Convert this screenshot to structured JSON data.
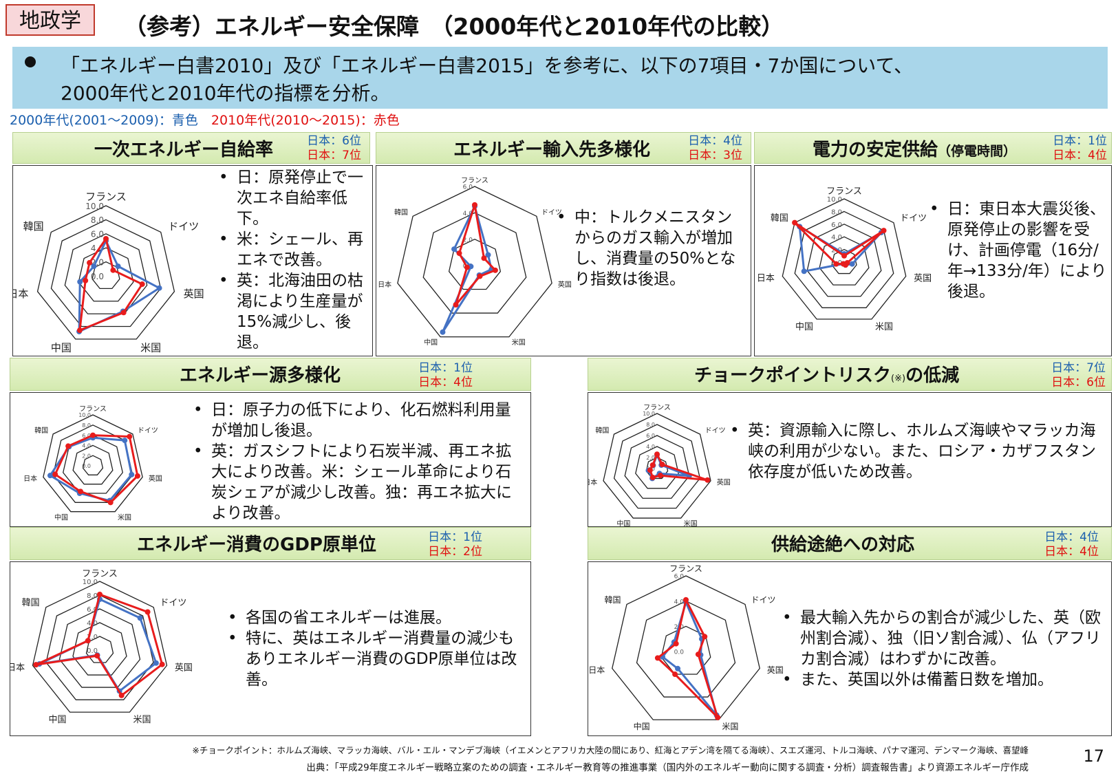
{
  "tag": "地政学",
  "title": "（参考）エネルギー安全保障　（2000年代と2010年代の比較）",
  "intro": {
    "line1": "「エネルギー白書2010」及び「エネルギー白書2015」を参考に、以下の7項目・7か国について、",
    "line2": "2000年代と2010年代の指標を分析。"
  },
  "legend": {
    "blue": "2000年代(2001～2009)：青色",
    "red": "2010年代(2010～2015)：赤色"
  },
  "colors": {
    "blue": "#4472c4",
    "red": "#e81c1c",
    "header_bg": "#dcefc0",
    "intro_bg": "#a9d6ea"
  },
  "axes_labels": [
    "フランス",
    "ドイツ",
    "英国",
    "米国",
    "中国",
    "日本",
    "韓国"
  ],
  "panels": [
    {
      "title": "一次エネルギー自給率",
      "rank_blue": "日本：6位",
      "rank_red": "日本：7位",
      "notes": [
        "日：原発停止で一次エネ自給率低下。",
        "米：シェール、再エネで改善。",
        "英：北海油田の枯渇により生産量が15%減少し、後退。"
      ],
      "chart_data": {
        "type": "radar",
        "ticks": [
          "10.0",
          "8.0",
          "6.0",
          "4.0",
          "2.0",
          "0.0"
        ],
        "range": [
          0,
          10
        ],
        "categories": [
          "フランス",
          "ドイツ",
          "英国",
          "米国",
          "中国",
          "日本",
          "韓国"
        ],
        "series": [
          {
            "values": [
              5.0,
              2.2,
              7.8,
              5.6,
              8.8,
              3.8,
              2.2
            ]
          },
          {
            "values": [
              5.3,
              1.3,
              5.3,
              5.8,
              8.6,
              3.0,
              3.0
            ]
          }
        ]
      }
    },
    {
      "title": "エネルギー輸入先多様化",
      "rank_blue": "日本：4位",
      "rank_red": "日本：3位",
      "notes": [
        "中：トルクメニスタンからのガス輸入が増加し、消費量の50%となり指数は後退。"
      ],
      "chart_data": {
        "type": "radar",
        "ticks": [
          "6.0",
          "4.0",
          "2.0",
          "0.0"
        ],
        "range": [
          0,
          6
        ],
        "categories": [
          "フランス",
          "ドイツ",
          "英国",
          "米国",
          "中国",
          "日本",
          "韓国"
        ],
        "series": [
          {
            "values": [
              4.5,
              1.3,
              1.3,
              0.8,
              5.6,
              0.3,
              2.0
            ]
          },
          {
            "values": [
              4.6,
              0.9,
              1.6,
              0.9,
              3.3,
              0.6,
              1.5
            ]
          }
        ]
      }
    },
    {
      "title": "電力の安定供給",
      "title_small": "（停電時間）",
      "rank_blue": "日本：1位",
      "rank_red": "日本：4位",
      "notes": [
        "日：東日本大震災後、原発停止の影響を受け、計画停電（16分/年→133分/年）により後退。"
      ],
      "chart_data": {
        "type": "radar",
        "ticks": [
          "10.0",
          "8.0",
          "6.0",
          "4.0",
          "2.0",
          "0.0"
        ],
        "range": [
          0,
          10
        ],
        "categories": [
          "フランス",
          "ドイツ",
          "英国",
          "米国",
          "中国",
          "日本",
          "韓国"
        ],
        "series": [
          {
            "values": [
              1.3,
              7.5,
              1.3,
              0.5,
              0.3,
              6.5,
              9.0
            ]
          },
          {
            "values": [
              1.0,
              8.0,
              0.5,
              0.5,
              0.3,
              1.3,
              10.0
            ]
          }
        ]
      }
    },
    {
      "title": "エネルギー源多様化",
      "rank_blue": "日本：1位",
      "rank_red": "日本：4位",
      "notes": [
        "日：原子力の低下により、化石燃料利用量が増加し後退。",
        "英：ガスシフトにより石炭半減、再エネ拡大により改善。米：シェール革命により石炭シェアが減少し改善。独：再エネ拡大により改善。"
      ],
      "chart_data": {
        "type": "radar",
        "ticks": [
          "10.0",
          "8.0",
          "6.0",
          "4.0",
          "2.0",
          "0.0"
        ],
        "range": [
          0,
          10
        ],
        "categories": [
          "フランス",
          "ドイツ",
          "英国",
          "米国",
          "中国",
          "日本",
          "韓国"
        ],
        "series": [
          {
            "values": [
              5.5,
              8.0,
              7.8,
              7.6,
              6.0,
              8.6,
              6.0
            ]
          },
          {
            "values": [
              6.0,
              9.2,
              9.0,
              8.0,
              5.6,
              7.6,
              6.2
            ]
          }
        ]
      }
    },
    {
      "title": "チョークポイントリスク",
      "title_mark": "(※)",
      "title_tail": "の低減",
      "rank_blue": "日本：7位",
      "rank_red": "日本：6位",
      "notes": [
        "英：資源輸入に際し、ホルムズ海峡やマラッカ海峡の利用が少ない。また、ロシア・カザフスタン依存度が低いため改善。"
      ],
      "chart_data": {
        "type": "radar",
        "ticks": [
          "10.0",
          "8.0",
          "6.0",
          "4.0",
          "2.0",
          "0.0"
        ],
        "range": [
          0,
          10
        ],
        "categories": [
          "フランス",
          "ドイツ",
          "英国",
          "米国",
          "中国",
          "日本",
          "韓国"
        ],
        "series": [
          {
            "values": [
              2.5,
              1.0,
              6.0,
              1.0,
              2.0,
              1.6,
              0.9
            ]
          },
          {
            "values": [
              2.6,
              1.2,
              9.4,
              1.4,
              1.8,
              1.3,
              1.0
            ]
          }
        ]
      }
    },
    {
      "title": "エネルギー消費のGDP原単位",
      "rank_blue": "日本：1位",
      "rank_red": "日本：2位",
      "notes": [
        "各国の省エネルギーは進展。",
        "特に、英はエネルギー消費量の減少もありエネルギー消費のGDP原単位は改善。"
      ],
      "chart_data": {
        "type": "radar",
        "ticks": [
          "10.0",
          "8.0",
          "6.0",
          "4.0",
          "2.0",
          "0.0"
        ],
        "range": [
          0,
          10
        ],
        "categories": [
          "フランス",
          "ドイツ",
          "英国",
          "米国",
          "中国",
          "日本",
          "韓国"
        ],
        "series": [
          {
            "values": [
              7.4,
              7.5,
              8.4,
              6.6,
              0.8,
              9.0,
              2.2
            ]
          },
          {
            "values": [
              8.1,
              8.9,
              9.3,
              7.3,
              0.9,
              9.5,
              2.2
            ]
          }
        ]
      }
    },
    {
      "title": "供給途絶への対応",
      "rank_blue": "日本：4位",
      "rank_red": "日本：4位",
      "notes": [
        "最大輸入先からの割合が減少した、英（欧州割合減）、独（旧ソ割合減）、仏（アフリカ割合減）はわずかに改善。",
        "また、英国以外は備蓄日数を増加。"
      ],
      "chart_data": {
        "type": "radar",
        "ticks": [
          "6.0",
          "4.0",
          "2.0",
          "0.0"
        ],
        "range": [
          0,
          6
        ],
        "categories": [
          "フランス",
          "ドイツ",
          "英国",
          "米国",
          "中国",
          "日本",
          "韓国"
        ],
        "series": [
          {
            "values": [
              3.9,
              1.6,
              1.2,
              5.6,
              1.5,
              1.9,
              1.2
            ]
          },
          {
            "values": [
              4.1,
              1.9,
              1.0,
              5.8,
              2.0,
              2.3,
              1.0
            ]
          }
        ]
      }
    }
  ],
  "footnote": "※チョークポイント：ホルムズ海峡、マラッカ海峡、バル・エル・マンデブ海峡（イエメンとアフリカ大陸の間にあり、紅海とアデン湾を隔てる海峡）、スエズ運河、トルコ海峡、パナマ運河、デンマーク海峡、喜望峰",
  "source": "出典：「平成29年度エネルギー戦略立案のための調査・エネルギー教育等の推進事業（国内外のエネルギー動向に関する調査・分析）調査報告書」より資源エネルギー庁作成",
  "page_number": "17"
}
